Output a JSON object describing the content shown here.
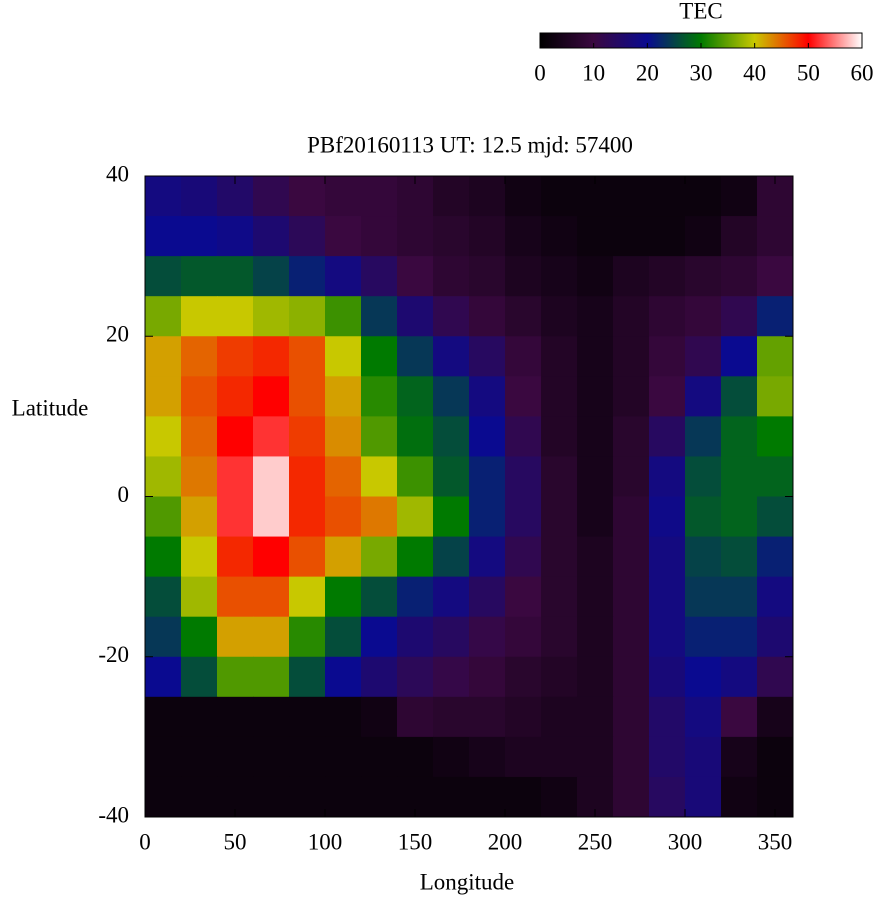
{
  "chart_data": {
    "type": "heatmap",
    "title": "PBf20160113  UT: 12.5  mjd: 57400",
    "xlabel": "Longitude",
    "ylabel": "Latitude",
    "x": [
      10,
      30,
      50,
      70,
      90,
      110,
      130,
      150,
      170,
      190,
      210,
      230,
      250,
      270,
      290,
      310,
      330,
      350
    ],
    "y": [
      37.5,
      32.5,
      27.5,
      22.5,
      17.5,
      12.5,
      7.5,
      2.5,
      -2.5,
      -7.5,
      -12.5,
      -17.5,
      -22.5,
      -27.5,
      -32.5,
      -37.5
    ],
    "values": [
      [
        18,
        17,
        15,
        12,
        10,
        9,
        9,
        8,
        6,
        5,
        3,
        2,
        2,
        2,
        2,
        2,
        3,
        8
      ],
      [
        20,
        20,
        19,
        16,
        13,
        10,
        9,
        8,
        7,
        6,
        4,
        3,
        2,
        2,
        2,
        3,
        6,
        8
      ],
      [
        26,
        27,
        27,
        25,
        22,
        18,
        14,
        10,
        8,
        7,
        5,
        4,
        3,
        5,
        6,
        7,
        8,
        10
      ],
      [
        36,
        40,
        40,
        38,
        37,
        33,
        24,
        16,
        12,
        9,
        7,
        5,
        4,
        6,
        8,
        9,
        12,
        22
      ],
      [
        42,
        45,
        47,
        48,
        46,
        40,
        30,
        24,
        18,
        14,
        9,
        6,
        4,
        6,
        9,
        12,
        20,
        35
      ],
      [
        42,
        46,
        48,
        50,
        46,
        42,
        32,
        28,
        24,
        18,
        10,
        6,
        4,
        6,
        10,
        18,
        26,
        36
      ],
      [
        40,
        45,
        50,
        52,
        47,
        43,
        34,
        29,
        26,
        20,
        12,
        6,
        4,
        7,
        14,
        24,
        28,
        30
      ],
      [
        38,
        44,
        52,
        58,
        48,
        45,
        40,
        33,
        27,
        22,
        14,
        7,
        4,
        7,
        18,
        26,
        28,
        28
      ],
      [
        34,
        42,
        52,
        58,
        48,
        46,
        44,
        38,
        30,
        22,
        14,
        7,
        4,
        8,
        19,
        27,
        28,
        26
      ],
      [
        30,
        40,
        48,
        50,
        46,
        42,
        36,
        30,
        25,
        18,
        12,
        7,
        5,
        8,
        18,
        25,
        26,
        22
      ],
      [
        26,
        38,
        46,
        46,
        40,
        30,
        26,
        22,
        18,
        14,
        10,
        7,
        5,
        8,
        18,
        24,
        24,
        18
      ],
      [
        24,
        30,
        42,
        42,
        32,
        26,
        20,
        16,
        14,
        11,
        9,
        7,
        5,
        8,
        18,
        22,
        22,
        16
      ],
      [
        20,
        26,
        34,
        34,
        26,
        20,
        16,
        13,
        11,
        9,
        7,
        6,
        5,
        8,
        17,
        20,
        18,
        12
      ],
      [
        2,
        2,
        2,
        2,
        2,
        2,
        3,
        8,
        7,
        7,
        6,
        5,
        5,
        8,
        15,
        18,
        10,
        4
      ],
      [
        2,
        2,
        2,
        2,
        2,
        2,
        2,
        2,
        3,
        4,
        5,
        5,
        5,
        8,
        15,
        17,
        4,
        2
      ],
      [
        2,
        2,
        2,
        2,
        2,
        2,
        2,
        2,
        2,
        2,
        2,
        3,
        5,
        8,
        14,
        17,
        3,
        2
      ]
    ],
    "xlim": [
      0,
      360
    ],
    "ylim": [
      -40,
      40
    ],
    "xticks": [
      0,
      50,
      100,
      150,
      200,
      250,
      300,
      350
    ],
    "yticks": [
      -40,
      -20,
      0,
      20,
      40
    ],
    "colorbar": {
      "label": "TEC",
      "lim": [
        0,
        60
      ],
      "ticks": [
        0,
        10,
        20,
        30,
        40,
        50,
        60
      ],
      "colors": [
        "#000000",
        "#3a0840",
        "#0a0a90",
        "#007a00",
        "#c8c800",
        "#ff0000",
        "#ffffff"
      ]
    }
  }
}
